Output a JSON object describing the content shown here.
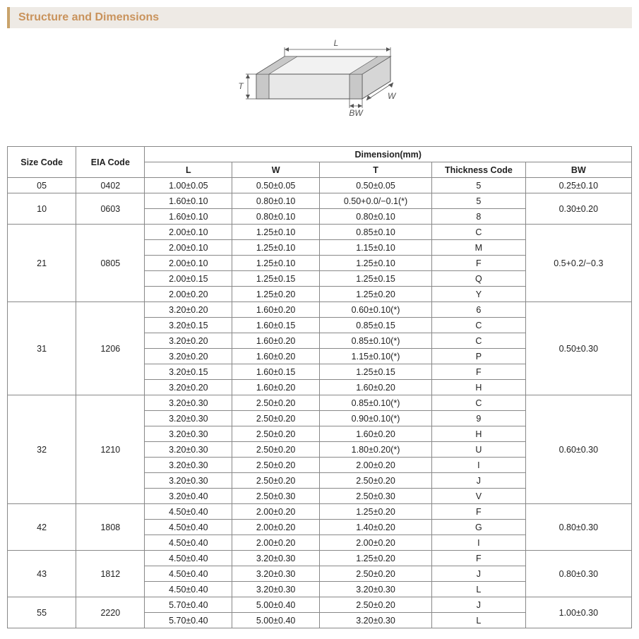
{
  "section_title": "Structure and Dimensions",
  "diagram": {
    "labels": {
      "L": "L",
      "W": "W",
      "T": "T",
      "BW": "BW"
    },
    "stroke": "#555555",
    "fill_top": "#f2f2f2",
    "fill_front": "#e8e8e8",
    "fill_side": "#d6d6d6",
    "band_fill": "#c8c8c8"
  },
  "table": {
    "header": {
      "size_code": "Size Code",
      "eia_code": "EIA Code",
      "dimension": "Dimension(mm)",
      "L": "L",
      "W": "W",
      "T": "T",
      "thickness_code": "Thickness  Code",
      "BW": "BW"
    },
    "groups": [
      {
        "size_code": "05",
        "eia_code": "0402",
        "bw": "0.25±0.10",
        "rows": [
          {
            "L": "1.00±0.05",
            "W": "0.50±0.05",
            "T": "0.50±0.05",
            "tc": "5"
          }
        ]
      },
      {
        "size_code": "10",
        "eia_code": "0603",
        "bw": "0.30±0.20",
        "rows": [
          {
            "L": "1.60±0.10",
            "W": "0.80±0.10",
            "T": "0.50+0.0/−0.1(*)",
            "tc": "5"
          },
          {
            "L": "1.60±0.10",
            "W": "0.80±0.10",
            "T": "0.80±0.10",
            "tc": "8"
          }
        ]
      },
      {
        "size_code": "21",
        "eia_code": "0805",
        "bw": "0.5+0.2/−0.3",
        "rows": [
          {
            "L": "2.00±0.10",
            "W": "1.25±0.10",
            "T": "0.85±0.10",
            "tc": "C"
          },
          {
            "L": "2.00±0.10",
            "W": "1.25±0.10",
            "T": "1.15±0.10",
            "tc": "M"
          },
          {
            "L": "2.00±0.10",
            "W": "1.25±0.10",
            "T": "1.25±0.10",
            "tc": "F"
          },
          {
            "L": "2.00±0.15",
            "W": "1.25±0.15",
            "T": "1.25±0.15",
            "tc": "Q"
          },
          {
            "L": "2.00±0.20",
            "W": "1.25±0.20",
            "T": "1.25±0.20",
            "tc": "Y"
          }
        ]
      },
      {
        "size_code": "31",
        "eia_code": "1206",
        "bw": "0.50±0.30",
        "rows": [
          {
            "L": "3.20±0.20",
            "W": "1.60±0.20",
            "T": "0.60±0.10(*)",
            "tc": "6"
          },
          {
            "L": "3.20±0.15",
            "W": "1.60±0.15",
            "T": "0.85±0.15",
            "tc": "C"
          },
          {
            "L": "3.20±0.20",
            "W": "1.60±0.20",
            "T": "0.85±0.10(*)",
            "tc": "C"
          },
          {
            "L": "3.20±0.20",
            "W": "1.60±0.20",
            "T": "1.15±0.10(*)",
            "tc": "P"
          },
          {
            "L": "3.20±0.15",
            "W": "1.60±0.15",
            "T": "1.25±0.15",
            "tc": "F"
          },
          {
            "L": "3.20±0.20",
            "W": "1.60±0.20",
            "T": "1.60±0.20",
            "tc": "H"
          }
        ]
      },
      {
        "size_code": "32",
        "eia_code": "1210",
        "bw": "0.60±0.30",
        "rows": [
          {
            "L": "3.20±0.30",
            "W": "2.50±0.20",
            "T": "0.85±0.10(*)",
            "tc": "C"
          },
          {
            "L": "3.20±0.30",
            "W": "2.50±0.20",
            "T": "0.90±0.10(*)",
            "tc": "9"
          },
          {
            "L": "3.20±0.30",
            "W": "2.50±0.20",
            "T": "1.60±0.20",
            "tc": "H"
          },
          {
            "L": "3.20±0.30",
            "W": "2.50±0.20",
            "T": "1.80±0.20(*)",
            "tc": "U"
          },
          {
            "L": "3.20±0.30",
            "W": "2.50±0.20",
            "T": "2.00±0.20",
            "tc": "I"
          },
          {
            "L": "3.20±0.30",
            "W": "2.50±0.20",
            "T": "2.50±0.20",
            "tc": "J"
          },
          {
            "L": "3.20±0.40",
            "W": "2.50±0.30",
            "T": "2.50±0.30",
            "tc": "V"
          }
        ]
      },
      {
        "size_code": "42",
        "eia_code": "1808",
        "bw": "0.80±0.30",
        "rows": [
          {
            "L": "4.50±0.40",
            "W": "2.00±0.20",
            "T": "1.25±0.20",
            "tc": "F"
          },
          {
            "L": "4.50±0.40",
            "W": "2.00±0.20",
            "T": "1.40±0.20",
            "tc": "G"
          },
          {
            "L": "4.50±0.40",
            "W": "2.00±0.20",
            "T": "2.00±0.20",
            "tc": "I"
          }
        ]
      },
      {
        "size_code": "43",
        "eia_code": "1812",
        "bw": "0.80±0.30",
        "rows": [
          {
            "L": "4.50±0.40",
            "W": "3.20±0.30",
            "T": "1.25±0.20",
            "tc": "F"
          },
          {
            "L": "4.50±0.40",
            "W": "3.20±0.30",
            "T": "2.50±0.20",
            "tc": "J"
          },
          {
            "L": "4.50±0.40",
            "W": "3.20±0.30",
            "T": "3.20±0.30",
            "tc": "L"
          }
        ]
      },
      {
        "size_code": "55",
        "eia_code": "2220",
        "bw": "1.00±0.30",
        "rows": [
          {
            "L": "5.70±0.40",
            "W": "5.00±0.40",
            "T": "2.50±0.20",
            "tc": "J"
          },
          {
            "L": "5.70±0.40",
            "W": "5.00±0.40",
            "T": "3.20±0.30",
            "tc": "L"
          }
        ]
      }
    ]
  }
}
